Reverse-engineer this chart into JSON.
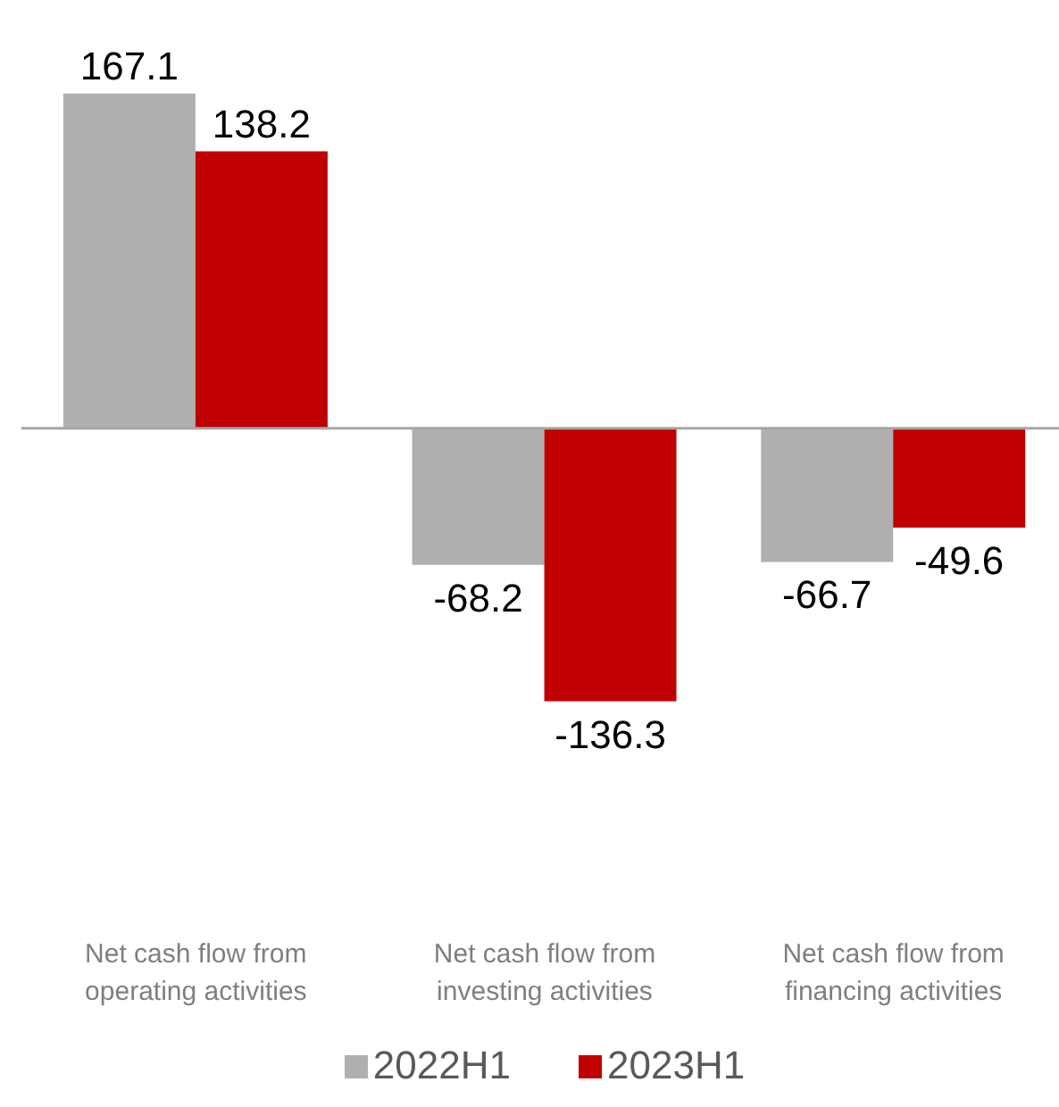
{
  "chart_data": {
    "type": "bar",
    "categories": [
      "Net cash flow from operating activities",
      "Net cash flow from investing activities",
      "Net cash flow from financing activities"
    ],
    "series": [
      {
        "name": "2022H1",
        "color": "#afafaf",
        "values": [
          167.1,
          -68.2,
          -66.7
        ]
      },
      {
        "name": "2023H1",
        "color": "#c00000",
        "values": [
          138.2,
          -136.3,
          -49.6
        ]
      }
    ],
    "data_labels": true,
    "legend": "bottom",
    "grid": false
  }
}
